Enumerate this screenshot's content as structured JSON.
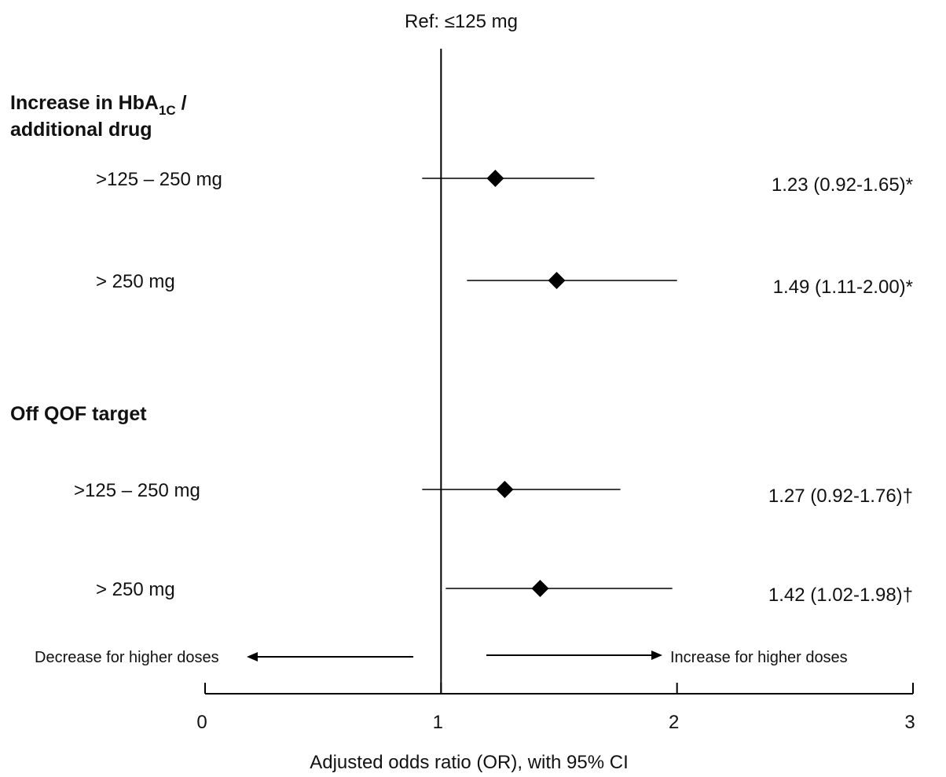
{
  "chart_data": {
    "type": "forest",
    "reference_label": "Ref: ≤125 mg",
    "xlabel": "Adjusted odds ratio (OR), with 95% CI",
    "xlim": [
      0,
      3
    ],
    "x_ticks": [
      0,
      1,
      2,
      3
    ],
    "x_tick_labels": [
      "0",
      "1",
      "2",
      "3"
    ],
    "reference_line": 1,
    "groups": [
      {
        "title_main": "Increase in HbA",
        "title_subscript": "1C",
        "title_suffix": " /",
        "title_line2": "additional drug",
        "rows": [
          {
            "label": ">125 – 250 mg",
            "or": 1.23,
            "ci_low": 0.92,
            "ci_high": 1.65,
            "text": "1.23 (0.92-1.65)*"
          },
          {
            "label": "> 250 mg",
            "or": 1.49,
            "ci_low": 1.11,
            "ci_high": 2.0,
            "text": "1.49 (1.11-2.00)*"
          }
        ]
      },
      {
        "title_main": "Off QOF target",
        "rows": [
          {
            "label": ">125 – 250 mg",
            "or": 1.27,
            "ci_low": 0.92,
            "ci_high": 1.76,
            "text": "1.27 (0.92-1.76)†"
          },
          {
            "label": "> 250 mg",
            "or": 1.42,
            "ci_low": 1.02,
            "ci_high": 1.98,
            "text": "1.42 (1.02-1.98)†"
          }
        ]
      }
    ],
    "direction_left": "Decrease for higher doses",
    "direction_right": "Increase for higher doses",
    "grid": false
  }
}
